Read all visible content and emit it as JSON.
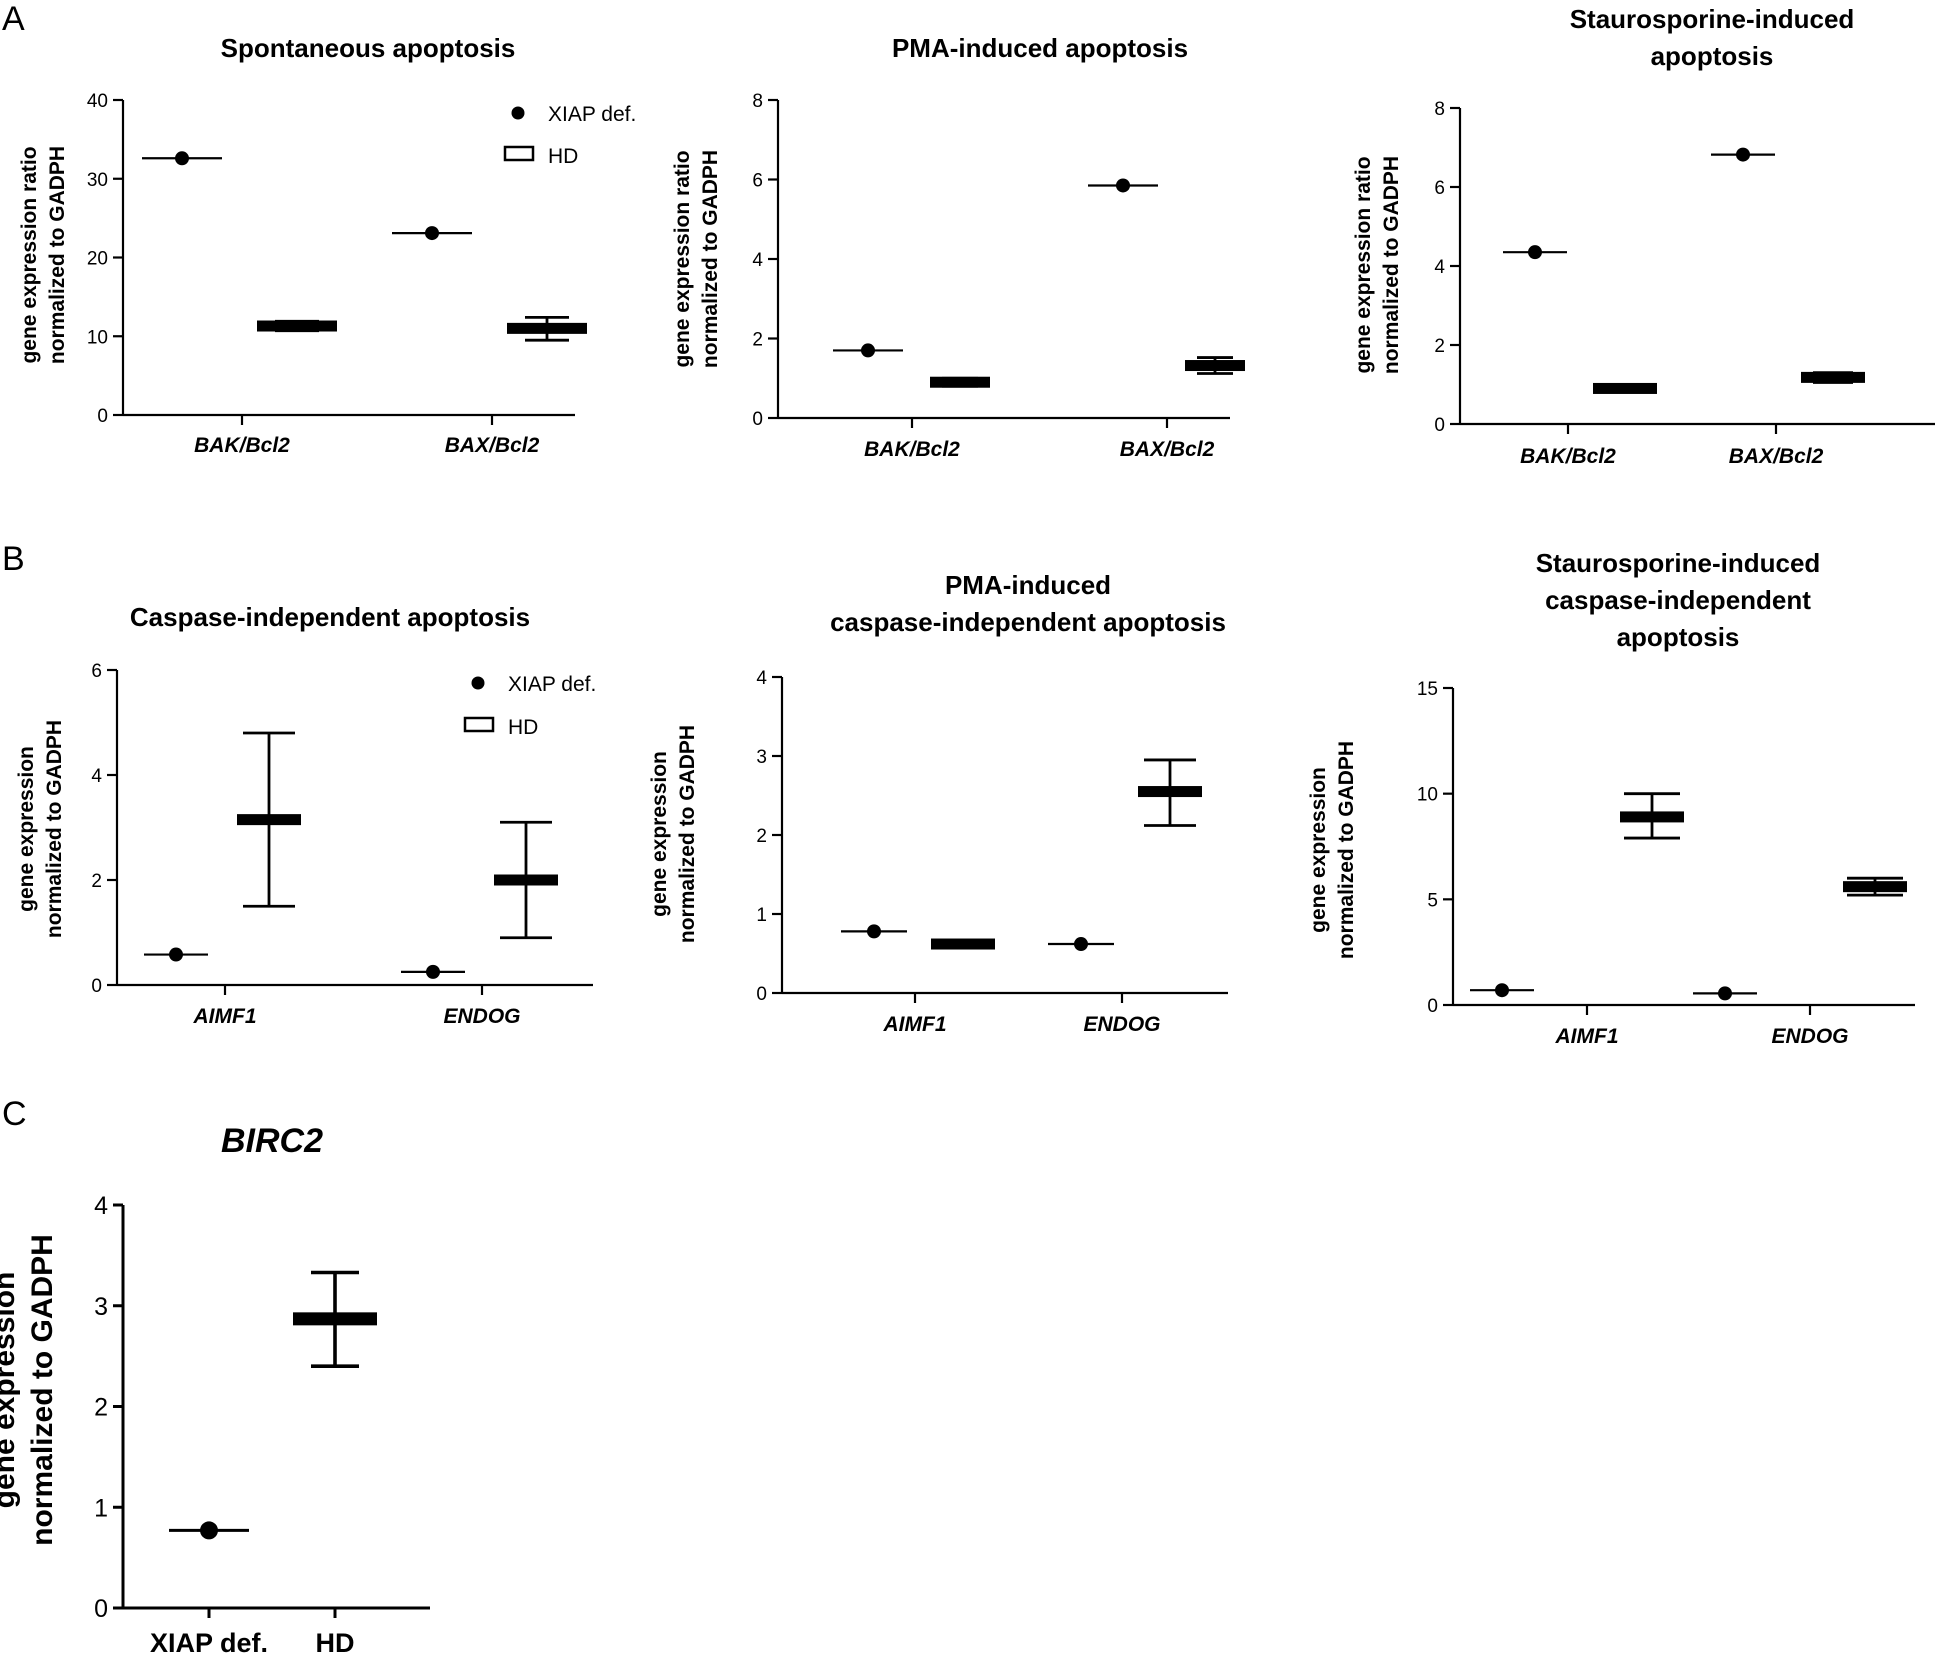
{
  "panel_letters": [
    "A",
    "B",
    "C"
  ],
  "chart_data": [
    {
      "id": "a1",
      "type": "scatter",
      "title": [
        "Spontaneous apoptosis"
      ],
      "ylabel": [
        "gene expression ratio",
        "normalized to GADPH"
      ],
      "categories": [
        "BAK/Bcl2",
        "BAX/Bcl2"
      ],
      "italic_categories": true,
      "ylim": [
        0,
        40
      ],
      "yticks": [
        0,
        10,
        20,
        30,
        40
      ],
      "legend": {
        "position": "top-right",
        "entries": [
          "XIAP def.",
          "HD"
        ]
      },
      "series": [
        {
          "name": "XIAP def.",
          "marker": "dot",
          "values": [
            32.6,
            23.1
          ]
        },
        {
          "name": "HD",
          "marker": "mean-range",
          "values": [
            11.3,
            11.0
          ],
          "high": [
            11.9,
            12.4
          ],
          "low": [
            10.7,
            9.5
          ]
        }
      ]
    },
    {
      "id": "a2",
      "type": "scatter",
      "title": [
        "PMA-induced apoptosis"
      ],
      "ylabel": [
        "gene expression ratio",
        "normalized to GADPH"
      ],
      "categories": [
        "BAK/Bcl2",
        "BAX/Bcl2"
      ],
      "italic_categories": true,
      "ylim": [
        0,
        8
      ],
      "yticks": [
        0,
        2,
        4,
        6,
        8
      ],
      "series": [
        {
          "name": "XIAP def.",
          "marker": "dot",
          "values": [
            1.7,
            5.85
          ]
        },
        {
          "name": "HD",
          "marker": "mean-range",
          "values": [
            0.9,
            1.32
          ],
          "high": [
            1.0,
            1.52
          ],
          "low": [
            0.8,
            1.12
          ]
        }
      ]
    },
    {
      "id": "a3",
      "type": "scatter",
      "title": [
        "Staurosporine-induced",
        "apoptosis"
      ],
      "ylabel": [
        "gene expression ratio",
        "normalized to GADPH"
      ],
      "categories": [
        "BAK/Bcl2",
        "BAX/Bcl2"
      ],
      "italic_categories": true,
      "ylim": [
        0,
        8
      ],
      "yticks": [
        0,
        2,
        4,
        6,
        8
      ],
      "series": [
        {
          "name": "XIAP def.",
          "marker": "dot",
          "values": [
            4.35,
            6.82
          ]
        },
        {
          "name": "HD",
          "marker": "mean-range",
          "values": [
            0.9,
            1.18
          ],
          "high": [
            0.95,
            1.3
          ],
          "low": [
            0.85,
            1.05
          ]
        }
      ]
    },
    {
      "id": "b1",
      "type": "scatter",
      "title": [
        "Caspase-independent apoptosis"
      ],
      "ylabel": [
        "gene expression",
        "normalized to GADPH"
      ],
      "categories": [
        "AIMF1",
        "ENDOG"
      ],
      "italic_categories": true,
      "ylim": [
        0,
        6
      ],
      "yticks": [
        0,
        2,
        4,
        6
      ],
      "legend": {
        "position": "top-right",
        "entries": [
          "XIAP def.",
          "HD"
        ]
      },
      "series": [
        {
          "name": "XIAP def.",
          "marker": "dot",
          "values": [
            0.58,
            0.25
          ]
        },
        {
          "name": "HD",
          "marker": "mean-range",
          "values": [
            3.15,
            2.0
          ],
          "high": [
            4.8,
            3.1
          ],
          "low": [
            1.5,
            0.9
          ]
        }
      ]
    },
    {
      "id": "b2",
      "type": "scatter",
      "title": [
        "PMA-induced",
        "caspase-independent apoptosis"
      ],
      "ylabel": [
        "gene expression",
        "normalized to GADPH"
      ],
      "categories": [
        "AIMF1",
        "ENDOG"
      ],
      "italic_categories": true,
      "ylim": [
        0,
        4
      ],
      "yticks": [
        0,
        1,
        2,
        3,
        4
      ],
      "series": [
        {
          "name": "XIAP def.",
          "marker": "dot",
          "values": [
            0.78,
            0.62
          ]
        },
        {
          "name": "HD",
          "marker": "mean-range",
          "values": [
            0.62,
            2.55
          ],
          "high": [
            0.64,
            2.95
          ],
          "low": [
            0.6,
            2.12
          ]
        }
      ]
    },
    {
      "id": "b3",
      "type": "scatter",
      "title": [
        "Staurosporine-induced",
        "caspase-independent",
        "apoptosis"
      ],
      "ylabel": [
        "gene expression",
        "normalized to GADPH"
      ],
      "categories": [
        "AIMF1",
        "ENDOG"
      ],
      "italic_categories": true,
      "ylim": [
        0,
        15
      ],
      "yticks": [
        0,
        5,
        10,
        15
      ],
      "series": [
        {
          "name": "XIAP def.",
          "marker": "dot",
          "values": [
            0.7,
            0.55
          ]
        },
        {
          "name": "HD",
          "marker": "mean-range",
          "values": [
            8.9,
            5.6
          ],
          "high": [
            10.0,
            6.0
          ],
          "low": [
            7.9,
            5.2
          ]
        }
      ]
    },
    {
      "id": "c1",
      "type": "scatter",
      "title": [
        "BIRC2"
      ],
      "ylabel": [
        "gene expression",
        "normalized to GADPH"
      ],
      "categories": [
        "XIAP def.",
        "HD"
      ],
      "italic_categories": false,
      "ylim": [
        0,
        4
      ],
      "yticks": [
        0,
        1,
        2,
        3,
        4
      ],
      "series": [
        {
          "name": "XIAP def.",
          "marker": "dot",
          "values": [
            0.77,
            null
          ]
        },
        {
          "name": "HD",
          "marker": "mean-range",
          "values": [
            null,
            2.87
          ],
          "high": [
            null,
            3.33
          ],
          "low": [
            null,
            2.4
          ]
        }
      ]
    }
  ]
}
